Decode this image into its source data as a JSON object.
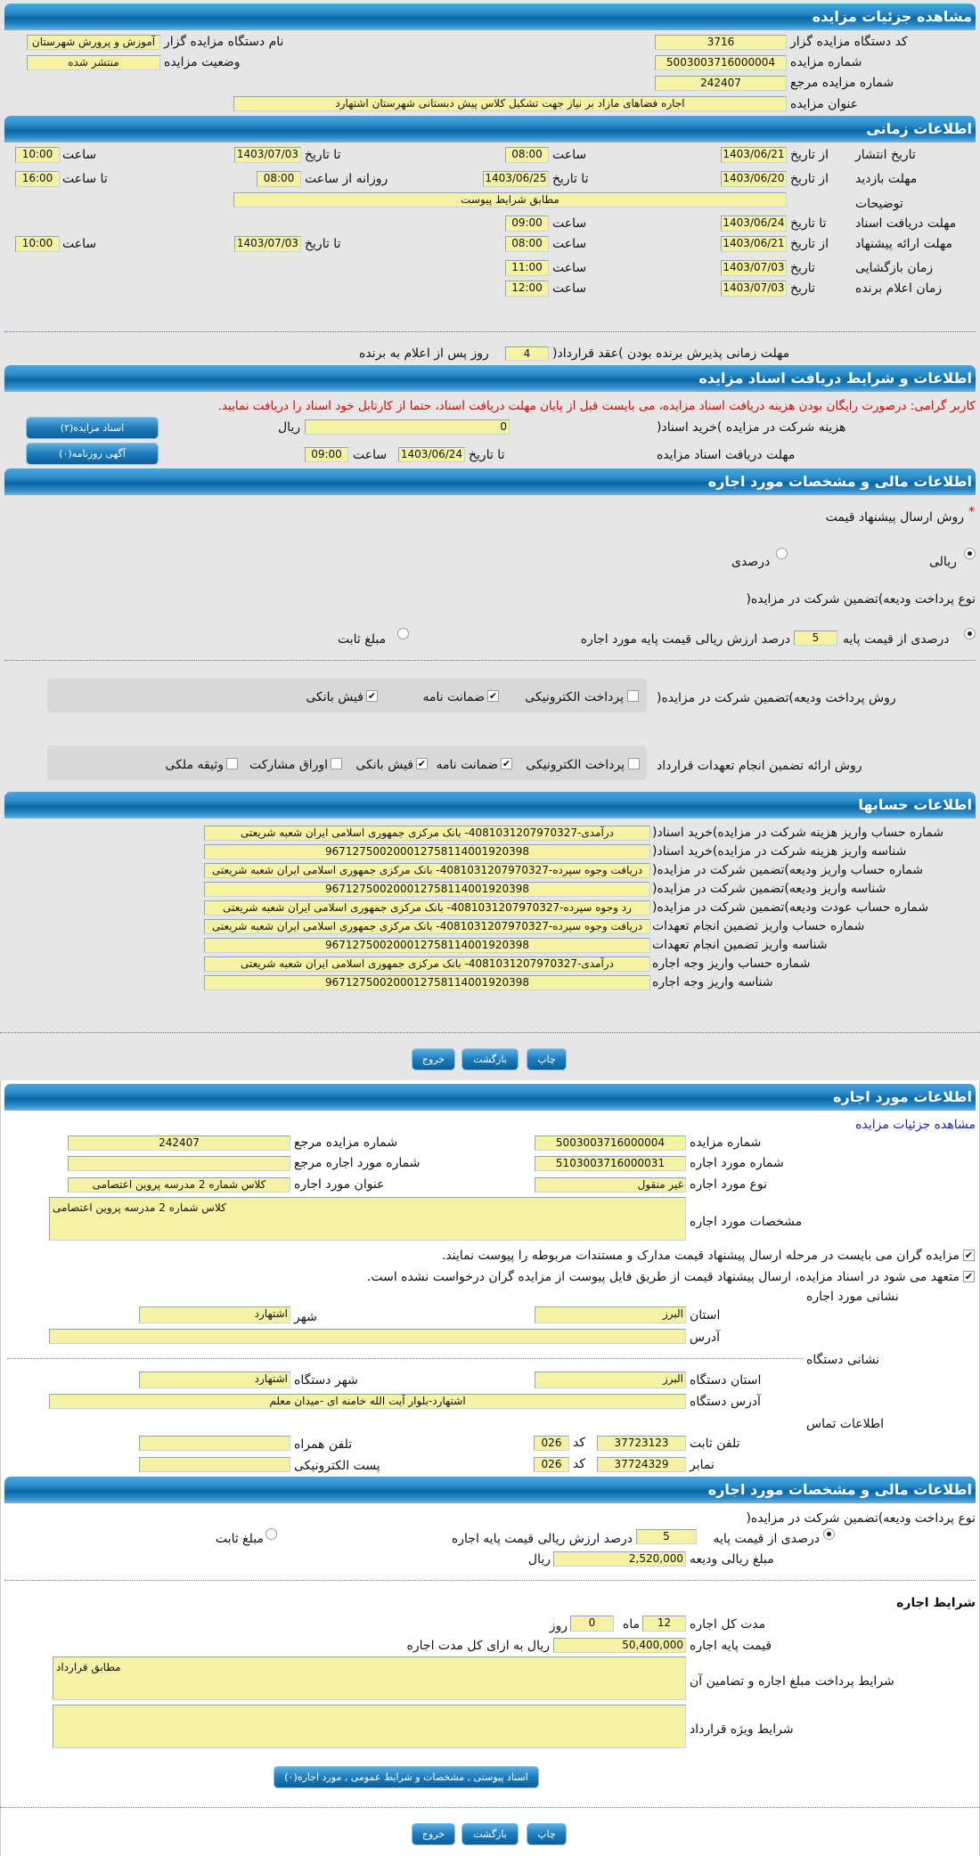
{
  "details": {
    "title": "مشاهده جزئیات مزایده",
    "org_code_label": "کد دستگاه مزایده گزار",
    "org_code": "3716",
    "auction_no_label": "شماره مزایده",
    "auction_no": "5003003716000004",
    "ref_no_label": "شماره مزایده مرجع",
    "ref_no": "242407",
    "subject_label": "عنوان مزایده",
    "subject": "اجاره فضاهای مازاد بر نیاز جهت تشکیل کلاس پیش دبستانی شهرستان اشتهارد",
    "org_name_label": "نام دستگاه مزایده گزار",
    "org_name": "آموزش و پرورش شهرستان",
    "status_label": "وضعیت مزایده",
    "status": "منتشر شده"
  },
  "timing": {
    "title": "اطلاعات زمانی",
    "from_date": "از تاریخ",
    "to_date": "تا تاریخ",
    "date": "تاریخ",
    "hour": "ساعت",
    "to_hour": "تا ساعت",
    "daily_from_hour": "روزانه از ساعت",
    "publish_label": "تاریخ انتشار",
    "publish_from": "1403/06/21",
    "publish_from_time": "08:00",
    "publish_to": "1403/07/03",
    "publish_to_time": "10:00",
    "visit_label": "مهلت بازدید",
    "visit_from": "1403/06/20",
    "visit_to": "1403/06/25",
    "visit_daily_from": "08:00",
    "visit_daily_to": "16:00",
    "desc_label": "توضیحات",
    "desc": "مطابق شرایط پیوست",
    "docs_label": "مهلت دریافت اسناد",
    "docs_to": "1403/06/24",
    "docs_time": "09:00",
    "offer_label": "مهلت ارائه پیشنهاد",
    "offer_from": "1403/06/21",
    "offer_from_time": "08:00",
    "offer_to": "1403/07/03",
    "offer_to_time": "10:00",
    "opening_label": "زمان بازگشایی",
    "opening_date": "1403/07/03",
    "opening_time": "11:00",
    "winner_label": "زمان اعلام برنده",
    "winner_date": "1403/07/03",
    "winner_time": "12:00",
    "accept_label": "مهلت زمانی پذیرش برنده بودن )عقد قرارداد(",
    "accept_days": "4",
    "accept_suffix": "روز پس از اعلام به برنده"
  },
  "docs": {
    "title": "اطلاعات و شرایط دریافت اسناد مزایده",
    "notice": "کاربر گرامی: درصورت رایگان بودن هزینه دریافت اسناد مزایده، می بایست قبل از پایان مهلت دریافت اسناد، حتما از کارتابل خود اسناد را دریافت نمایید.",
    "fee_label": "هزینه شرکت در مزایده )خرید اسناد(",
    "fee": "0",
    "rial": "ریال",
    "deadline_label": "مهلت دریافت اسناد مزایده",
    "to_date": "تا تاریخ",
    "deadline_date": "1403/06/24",
    "hour": "ساعت",
    "deadline_time": "09:00",
    "docs_button": "اسناد مزایده(۲)",
    "ads_button": "آگهی روزنامه(۰)"
  },
  "finance": {
    "title": "اطلاعات مالی و مشخصات مورد اجاره",
    "required_mark": "*",
    "price_method_label": "روش ارسال پیشنهاد قیمت",
    "price_methods": [
      {
        "label": "ریالی",
        "checked": true
      },
      {
        "label": "درصدی",
        "checked": false
      }
    ],
    "deposit_type_label": "نوع پرداخت ودیعه)تضمین شرکت در مزایده(",
    "deposit_percent_label": "درصدی از قیمت پایه",
    "deposit_percent": "5",
    "deposit_percent_suffix": "درصد ارزش ریالی قیمت پایه مورد اجاره",
    "deposit_fixed_label": "مبلغ ثابت",
    "deposit_pay_label": "روش پرداخت ودیعه)تضمین شرکت در مزایده(",
    "deposit_pay_options": [
      {
        "label": "پرداخت الکترونیکی",
        "checked": false
      },
      {
        "label": "ضمانت نامه",
        "checked": true
      },
      {
        "label": "فیش بانکی",
        "checked": true
      }
    ],
    "guarantee_label": "روش ارائه تضمین انجام تعهدات قرارداد",
    "guarantee_options": [
      {
        "label": "پرداخت الکترونیکی",
        "checked": false
      },
      {
        "label": "ضمانت نامه",
        "checked": true
      },
      {
        "label": "فیش بانکی",
        "checked": true
      },
      {
        "label": "اوراق مشارکت",
        "checked": false
      },
      {
        "label": "وثیقه ملکی",
        "checked": false
      }
    ]
  },
  "accounts": {
    "title": "اطلاعات حسابها",
    "rows": [
      {
        "label": "شماره حساب واریز هزینه شرکت در مزایده)خرید اسناد(",
        "value": "درآمدی-4081031207970327- بانک مرکزی جمهوری اسلامی ایران شعبه شریعتی"
      },
      {
        "label": "شناسه واریز هزینه شرکت در مزایده)خرید اسناد(",
        "value": "967127500200012758114001920398"
      },
      {
        "label": "شماره حساب واریز ودیعه)تضمین شرکت در مزایده(",
        "value": "دریافت وجوه سپرده-4081031207970327- بانک مرکزی جمهوری اسلامی ایران شعبه شریعتی"
      },
      {
        "label": "شناسه واریز ودیعه)تضمین شرکت در مزایده(",
        "value": "967127500200012758114001920398"
      },
      {
        "label": "شماره حساب عودت ودیعه)تضمین شرکت در مزایده(",
        "value": "رد وجوه سپرده-4081031207970327- بانک مرکزی جمهوری اسلامی ایران شعبه شریعتی"
      },
      {
        "label": "شماره حساب واریز تضمین انجام تعهدات",
        "value": "دریافت وجوه سپرده-4081031207970327- بانک مرکزی جمهوری اسلامی ایران شعبه شریعتی"
      },
      {
        "label": "شناسه واریز تضمین انجام تعهدات",
        "value": "967127500200012758114001920398"
      },
      {
        "label": "شماره حساب واریز وجه اجاره",
        "value": "درآمدی-4081031207970327- بانک مرکزی جمهوری اسلامی ایران شعبه شریعتی"
      },
      {
        "label": "شناسه واریز وجه اجاره",
        "value": "967127500200012758114001920398"
      }
    ]
  },
  "actions": {
    "print": "چاپ",
    "back": "بازگشت",
    "exit": "خروج"
  },
  "lease": {
    "title": "اطلاعات مورد اجاره",
    "details_link": "مشاهده جزئیات مزایده",
    "auction_no_label": "شماره مزایده",
    "auction_no": "5003003716000004",
    "ref_no_label": "شماره مزایده مرجع",
    "ref_no": "242407",
    "item_no_label": "شماره مورد اجاره",
    "item_no": "5103003716000031",
    "item_ref_label": "شماره مورد اجاره مرجع",
    "item_ref": "",
    "type_label": "نوع مورد اجاره",
    "type": "غیر منقول",
    "item_title_label": "عنوان مورد اجاره",
    "item_title": "کلاس شماره 2 مدرسه پروین اعتصامی",
    "specs_label": "مشخصات مورد اجاره",
    "specs": "کلاس شماره 2 مدرسه پروین اعتصامی",
    "check1": "مزایده گران می بایست در مرحله ارسال پیشنهاد قیمت مدارک و مستندات مربوطه را پیوست نمایند.",
    "check2": "متعهد می شود در اسناد مزایده، ارسال پیشنهاد قیمت از طریق فایل پیوست از مزایده گران درخواست نشده است.",
    "address_title": "نشانی مورد اجاره",
    "province_label": "استان",
    "province": "البرز",
    "city_label": "شهر",
    "city": "اشتهارد",
    "address_label": "آدرس",
    "address": "",
    "org_address_title": "نشانی دستگاه",
    "org_province_label": "استان دستگاه",
    "org_province": "البرز",
    "org_city_label": "شهر دستگاه",
    "org_city": "اشتهارد",
    "org_address_label": "آدرس دستگاه",
    "org_address": "اشتهارد-بلوار آیت الله خامنه ای -میدان معلم",
    "contact_title": "اطلاعات تماس",
    "phone_label": "تلفن ثابت",
    "phone": "37723123",
    "code_label": "کد",
    "phone_code": "026",
    "mobile_label": "تلفن همراه",
    "mobile": "",
    "fax_label": "نمابر",
    "fax": "37724329",
    "fax_code": "026",
    "email_label": "پست الکترونیکی",
    "email": ""
  },
  "lease_finance": {
    "title": "اطلاعات مالی و مشخصات مورد اجاره",
    "deposit_type_label": "نوع پرداخت ودیعه)تضمین شرکت در مزایده(",
    "percent_label": "درصدی از قیمت پایه",
    "percent": "5",
    "percent_suffix": "درصد ارزش ریالی قیمت پایه اجاره",
    "fixed_label": "مبلغ ثابت",
    "deposit_amount_label": "مبلغ ریالی ودیعه",
    "deposit_amount": "2,520,000",
    "rial": "ریال",
    "terms_title": "شرایط اجاره",
    "duration_label": "مدت کل اجاره",
    "months": "12",
    "month_unit": "ماه",
    "days": "0",
    "day_unit": "روز",
    "base_price_label": "قیمت پایه اجاره",
    "base_price": "50,400,000",
    "base_price_suffix": "ریال به ازای کل مدت اجاره",
    "payment_terms_label": "شرایط پرداخت مبلغ اجاره و تضامین آن",
    "payment_terms": "مطابق قرارداد",
    "special_terms_label": "شرایط ویژه قرارداد",
    "special_terms": "",
    "attachments_button": "اسناد پیوستی , مشخصات و شرایط عمومی , مورد اجاره(۰)"
  },
  "colors": {
    "header": "#1f7ab8",
    "field": "#f5f2a5",
    "page": "#e6e6e6",
    "notice": "#e00000",
    "link": "#1a1ad6"
  }
}
